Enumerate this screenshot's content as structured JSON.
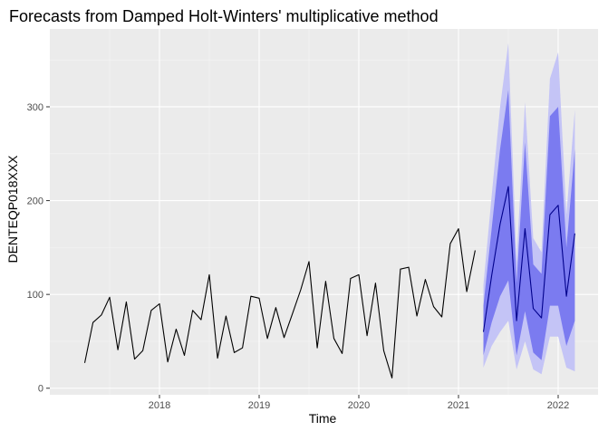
{
  "chart_data": {
    "type": "line",
    "title": "Forecasts from Damped Holt-Winters' multiplicative method",
    "xlabel": "Time",
    "ylabel": "DENTEQP018XXX",
    "xlim": [
      2016.9,
      2022.4
    ],
    "ylim": [
      -7,
      383
    ],
    "x_ticks": [
      {
        "value": 2018,
        "label": "2018"
      },
      {
        "value": 2019,
        "label": "2019"
      },
      {
        "value": 2020,
        "label": "2020"
      },
      {
        "value": 2021,
        "label": "2021"
      },
      {
        "value": 2022,
        "label": "2022"
      }
    ],
    "y_ticks": [
      {
        "value": 0,
        "label": "0"
      },
      {
        "value": 100,
        "label": "100"
      },
      {
        "value": 200,
        "label": "200"
      },
      {
        "value": 300,
        "label": "300"
      }
    ],
    "grid": true,
    "legend": "none",
    "colors": {
      "panel": "#ebebeb",
      "grid_major": "#ffffff",
      "grid_minor": "#f5f5f5",
      "history_line": "#000000",
      "forecast_line": "#00008b",
      "band_95": "#c4c4f6",
      "band_80": "#7b7bf0"
    },
    "series": [
      {
        "kind": "history",
        "x": [
          2017.25,
          2017.333,
          2017.417,
          2017.5,
          2017.583,
          2017.667,
          2017.75,
          2017.833,
          2017.917,
          2018.0,
          2018.083,
          2018.167,
          2018.25,
          2018.333,
          2018.417,
          2018.5,
          2018.583,
          2018.667,
          2018.75,
          2018.833,
          2018.917,
          2019.0,
          2019.083,
          2019.167,
          2019.25,
          2019.333,
          2019.417,
          2019.5,
          2019.583,
          2019.667,
          2019.75,
          2019.833,
          2019.917,
          2020.0,
          2020.083,
          2020.167,
          2020.25,
          2020.333,
          2020.417,
          2020.5,
          2020.583,
          2020.667,
          2020.75,
          2020.833,
          2020.917,
          2021.0,
          2021.083,
          2021.167
        ],
        "values": [
          27,
          70,
          78,
          97,
          41,
          92,
          31,
          40,
          83,
          90,
          28,
          63,
          35,
          83,
          73,
          121,
          32,
          77,
          38,
          43,
          98,
          96,
          53,
          86,
          54,
          79,
          105,
          135,
          43,
          114,
          53,
          37,
          117,
          121,
          56,
          112,
          40,
          11,
          127,
          129,
          77,
          116,
          87,
          76,
          154,
          170,
          103,
          147
        ]
      },
      {
        "kind": "forecast",
        "name": "point forecast",
        "x": [
          2021.25,
          2021.333,
          2021.417,
          2021.5,
          2021.583,
          2021.667,
          2021.75,
          2021.833,
          2021.917,
          2022.0,
          2022.083,
          2022.167
        ],
        "values": [
          60,
          120,
          175,
          215,
          72,
          170,
          85,
          75,
          185,
          195,
          98,
          165
        ],
        "lo80": [
          35,
          70,
          98,
          115,
          35,
          82,
          38,
          30,
          88,
          88,
          45,
          72
        ],
        "hi80": [
          88,
          170,
          255,
          318,
          112,
          262,
          132,
          122,
          290,
          300,
          150,
          255
        ],
        "lo95": [
          22,
          45,
          60,
          72,
          20,
          50,
          20,
          15,
          55,
          55,
          22,
          18
        ],
        "hi95": [
          110,
          205,
          300,
          368,
          135,
          305,
          160,
          145,
          330,
          358,
          185,
          297
        ]
      }
    ]
  }
}
